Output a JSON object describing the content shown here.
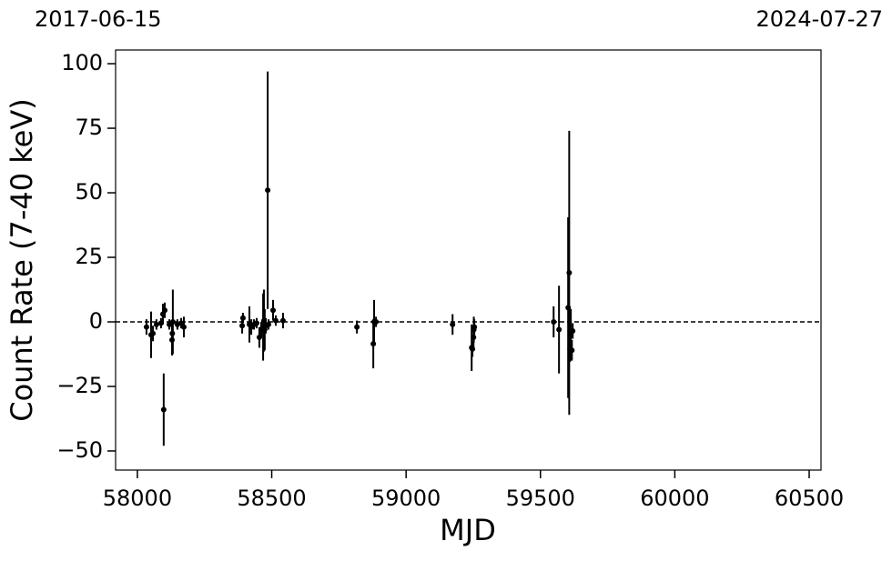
{
  "chart_data": {
    "type": "errorbar_scatter",
    "xlabel": "MJD",
    "ylabel": "Count Rate (7-40 keV)",
    "top_left_label": "2017-06-15",
    "top_right_label": "2024-07-27",
    "xlim": [
      57919,
      60544
    ],
    "ylim": [
      -57.4,
      105.3
    ],
    "xticks": [
      58000,
      58500,
      59000,
      59500,
      60000,
      60500
    ],
    "yticks": [
      {
        "value": -50,
        "label": "−50"
      },
      {
        "value": -25,
        "label": "−25"
      },
      0,
      25,
      50,
      75,
      100
    ],
    "reference_line": 0,
    "series": [
      {
        "color": "#000000",
        "x": [
          58034,
          58051,
          58058,
          58071,
          58088,
          58095,
          58098,
          58102,
          58119,
          58129,
          58132,
          58130,
          58149,
          58163,
          58173,
          58390,
          58393,
          58417,
          58424,
          58434,
          58444,
          58454,
          58461,
          58468,
          58471,
          58474,
          58478,
          58485,
          58488,
          58505,
          58515,
          58542,
          58817,
          58878,
          58881,
          58888,
          59173,
          59244,
          59247,
          59251,
          59254,
          59252,
          59549,
          59569,
          59603,
          59607,
          59610,
          59613,
          59617,
          59620
        ],
        "values": [
          -2,
          -5,
          -4.5,
          -1,
          -0.5,
          3,
          -34,
          4.5,
          -1,
          -7,
          0,
          -4.5,
          -1,
          -0.5,
          -2,
          -1.5,
          1.5,
          -1,
          -2,
          -1,
          -0.5,
          -6,
          -3,
          -2,
          0.5,
          -3,
          -1.5,
          51,
          -1,
          4.5,
          0.5,
          0.5,
          -2,
          -8.5,
          0,
          0,
          -1,
          -10,
          -10.5,
          -6,
          -2,
          -3,
          0,
          -3,
          5.5,
          19,
          -10.5,
          -5,
          -11,
          -3.5
        ],
        "errors": [
          3,
          9,
          3,
          2,
          2,
          4,
          14,
          3,
          2,
          6,
          12.5,
          3,
          2,
          2,
          4,
          3,
          2,
          7,
          3,
          2,
          2,
          4,
          3,
          13,
          12,
          8,
          3,
          46,
          2,
          4,
          2,
          3,
          2.5,
          9.5,
          8.5,
          2,
          4,
          9,
          3,
          4,
          3,
          5,
          6,
          17,
          35,
          55,
          5,
          10,
          4,
          3
        ]
      }
    ]
  }
}
